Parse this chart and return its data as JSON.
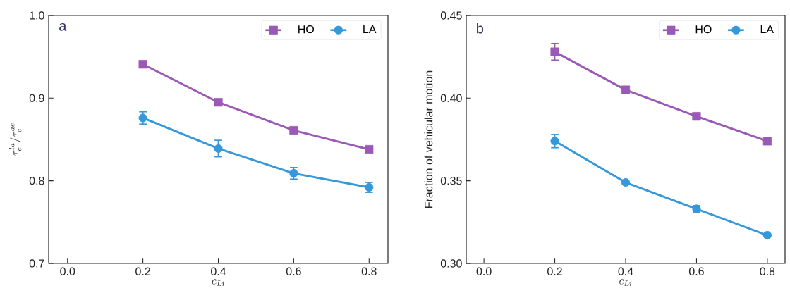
{
  "chart_data": [
    {
      "type": "line",
      "xlabel": "c_{Li}",
      "ylabel": "\\tau_c^{la}/\\tau_c^{ac}",
      "annotations": [
        "a"
      ],
      "x": [
        0.2,
        0.4,
        0.6,
        0.8
      ],
      "series": [
        {
          "name": "HO",
          "color": "#9b59b6",
          "marker": "square",
          "values": [
            0.941,
            0.895,
            0.861,
            0.838
          ],
          "errors": [
            null,
            null,
            null,
            null
          ]
        },
        {
          "name": "LA",
          "color": "#3498db",
          "marker": "circle",
          "values": [
            0.876,
            0.839,
            0.809,
            0.792
          ],
          "errors": [
            0.0075,
            0.01,
            0.007,
            0.006
          ]
        }
      ],
      "xlim": [
        -0.05,
        0.85
      ],
      "ylim": [
        0.7,
        1.0
      ],
      "xticks": [
        {
          "value": 0,
          "label": "0.0"
        },
        0.2,
        0.4,
        0.6,
        0.8
      ],
      "yticks": [
        0.7,
        0.8,
        0.9,
        {
          "value": 1.0,
          "label": "1.0"
        }
      ],
      "legend": "top right",
      "grid": false
    },
    {
      "type": "line",
      "xlabel": "c_{Li}",
      "ylabel": "Fraction of vehicular motion",
      "annotations": [
        "b"
      ],
      "x": [
        0.2,
        0.4,
        0.6,
        0.8
      ],
      "series": [
        {
          "name": "HO",
          "color": "#9b59b6",
          "marker": "square",
          "values": [
            0.428,
            0.405,
            0.389,
            0.374
          ],
          "errors": [
            0.005,
            null,
            null,
            null
          ]
        },
        {
          "name": "LA",
          "color": "#3498db",
          "marker": "circle",
          "values": [
            0.374,
            0.349,
            0.333,
            0.317
          ],
          "errors": [
            0.004,
            null,
            0.002,
            null
          ]
        }
      ],
      "xlim": [
        -0.05,
        0.85
      ],
      "ylim": [
        0.3,
        0.45
      ],
      "xticks": [
        {
          "value": 0,
          "label": "0.0"
        },
        0.2,
        0.4,
        0.6,
        0.8
      ],
      "yticks": [
        {
          "value": 0.3,
          "label": "0.30"
        },
        0.35,
        {
          "value": 0.4,
          "label": "0.40"
        },
        0.45
      ],
      "legend": "top right",
      "grid": false
    }
  ]
}
